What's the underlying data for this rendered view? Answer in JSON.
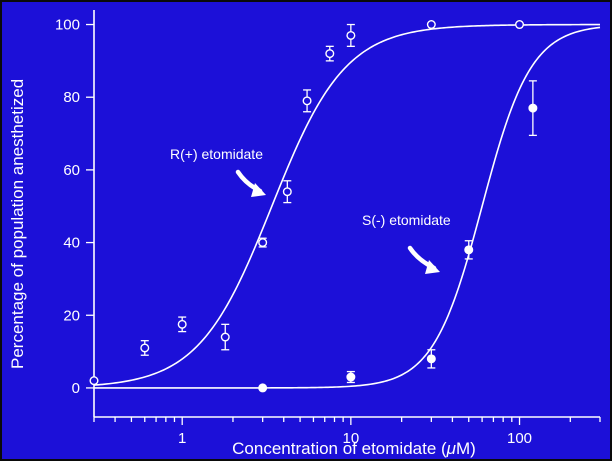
{
  "chart_data": {
    "type": "scatter",
    "xscale": "log",
    "xlim": [
      0.3,
      300
    ],
    "ylim": [
      -8,
      104
    ],
    "xlabel": "Concentration of etomidate (μM)",
    "ylabel": "Percentage of population anesthetized",
    "x_ticks": [
      {
        "value": 1,
        "label": "1"
      },
      {
        "value": 10,
        "label": "10"
      },
      {
        "value": 100,
        "label": "100"
      }
    ],
    "y_ticks": [
      {
        "value": 0,
        "label": "0"
      },
      {
        "value": 20,
        "label": "20"
      },
      {
        "value": 40,
        "label": "40"
      },
      {
        "value": 60,
        "label": "60"
      },
      {
        "value": 80,
        "label": "80"
      },
      {
        "value": 100,
        "label": "100"
      }
    ],
    "grid": false,
    "colors": {
      "background": "#1c10d8",
      "foreground": "#ffffff"
    },
    "series": [
      {
        "name": "R(+) etomidate",
        "marker": "open-circle",
        "points": [
          {
            "x": 0.3,
            "y": 2,
            "err": 0
          },
          {
            "x": 0.6,
            "y": 11,
            "err": 2
          },
          {
            "x": 1.0,
            "y": 17.5,
            "err": 2
          },
          {
            "x": 1.8,
            "y": 14,
            "err": 3.5
          },
          {
            "x": 3.0,
            "y": 40,
            "err": 1.2
          },
          {
            "x": 4.2,
            "y": 54,
            "err": 3
          },
          {
            "x": 5.5,
            "y": 79,
            "err": 3
          },
          {
            "x": 7.5,
            "y": 92,
            "err": 2
          },
          {
            "x": 10,
            "y": 97,
            "err": 3
          },
          {
            "x": 30,
            "y": 100,
            "err": 0
          },
          {
            "x": 100,
            "y": 100,
            "err": 0
          }
        ],
        "fit": {
          "ec50": 3.4,
          "hill": 2.0
        }
      },
      {
        "name": "S(-) etomidate",
        "marker": "filled-circle",
        "points": [
          {
            "x": 3.0,
            "y": 0,
            "err": 0
          },
          {
            "x": 10,
            "y": 3,
            "err": 1.5
          },
          {
            "x": 30,
            "y": 8,
            "err": 2.5
          },
          {
            "x": 50,
            "y": 38,
            "err": 2.5
          },
          {
            "x": 120,
            "y": 77,
            "err": 7.5
          }
        ],
        "fit": {
          "ec50": 60,
          "hill": 3.0
        }
      }
    ],
    "annotations": [
      {
        "text": "R(+) etomidate",
        "series": 0
      },
      {
        "text": "S(-) etomidate",
        "series": 1
      }
    ]
  }
}
